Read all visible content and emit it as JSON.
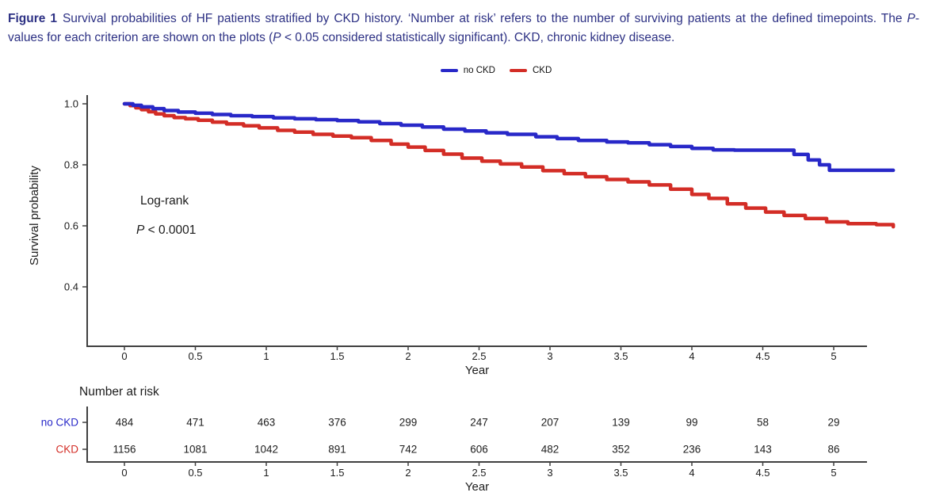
{
  "caption": {
    "color": "#2d3184",
    "segments": [
      {
        "text": "Figure 1",
        "bold": true
      },
      {
        "text": "Survival probabilities of HF patients stratified by CKD history. ‘Number at risk’ refers to the number of surviving patients at the defined timepoints. The "
      },
      {
        "text": "P",
        "italic": true
      },
      {
        "text": "-values for each criterion are shown on the plots ("
      },
      {
        "text": "P",
        "italic": true
      },
      {
        "text": " < 0.05 considered statistically significant). CKD, chronic kidney disease."
      }
    ]
  },
  "legend": {
    "items": [
      {
        "label": "no CKD",
        "color": "#2828c8"
      },
      {
        "label": "CKD",
        "color": "#d32d26"
      }
    ]
  },
  "annotation": {
    "logrank": "Log-rank",
    "p_symbol": "P",
    "p_rest": " < 0.0001"
  },
  "chart_data": {
    "type": "line",
    "subtype": "kaplan-meier-step",
    "title": "",
    "xlabel": "Year",
    "ylabel": "Survival probability",
    "xlim": [
      -0.26,
      5.45
    ],
    "ylim": [
      0.2,
      1.05
    ],
    "xticks": [
      0,
      0.5,
      1,
      1.5,
      2,
      2.5,
      3,
      3.5,
      4,
      4.5,
      5
    ],
    "yticks": [
      0.4,
      0.6,
      0.8,
      1.0
    ],
    "grid": false,
    "legend_position": "top-center",
    "axis_color": "#404040",
    "tick_text_color": "#1c1c1c",
    "series": [
      {
        "name": "CKD",
        "color": "#d32d26",
        "points": [
          [
            0,
            1.0
          ],
          [
            0.04,
            0.994
          ],
          [
            0.08,
            0.987
          ],
          [
            0.12,
            0.981
          ],
          [
            0.17,
            0.974
          ],
          [
            0.22,
            0.967
          ],
          [
            0.28,
            0.961
          ],
          [
            0.35,
            0.955
          ],
          [
            0.43,
            0.951
          ],
          [
            0.52,
            0.946
          ],
          [
            0.62,
            0.94
          ],
          [
            0.72,
            0.934
          ],
          [
            0.84,
            0.928
          ],
          [
            0.95,
            0.921
          ],
          [
            1.08,
            0.913
          ],
          [
            1.2,
            0.907
          ],
          [
            1.33,
            0.9
          ],
          [
            1.47,
            0.894
          ],
          [
            1.6,
            0.889
          ],
          [
            1.74,
            0.88
          ],
          [
            1.88,
            0.868
          ],
          [
            2.0,
            0.858
          ],
          [
            2.12,
            0.847
          ],
          [
            2.25,
            0.835
          ],
          [
            2.38,
            0.822
          ],
          [
            2.52,
            0.812
          ],
          [
            2.65,
            0.803
          ],
          [
            2.8,
            0.793
          ],
          [
            2.95,
            0.781
          ],
          [
            3.1,
            0.771
          ],
          [
            3.25,
            0.761
          ],
          [
            3.4,
            0.752
          ],
          [
            3.55,
            0.744
          ],
          [
            3.7,
            0.734
          ],
          [
            3.85,
            0.72
          ],
          [
            4.0,
            0.703
          ],
          [
            4.12,
            0.69
          ],
          [
            4.25,
            0.672
          ],
          [
            4.38,
            0.658
          ],
          [
            4.52,
            0.645
          ],
          [
            4.65,
            0.634
          ],
          [
            4.8,
            0.624
          ],
          [
            4.95,
            0.613
          ],
          [
            5.1,
            0.607
          ],
          [
            5.3,
            0.604
          ],
          [
            5.42,
            0.597
          ]
        ]
      },
      {
        "name": "no CKD",
        "color": "#2828c8",
        "points": [
          [
            0,
            1.0
          ],
          [
            0.06,
            0.995
          ],
          [
            0.12,
            0.99
          ],
          [
            0.2,
            0.984
          ],
          [
            0.28,
            0.978
          ],
          [
            0.38,
            0.973
          ],
          [
            0.5,
            0.969
          ],
          [
            0.62,
            0.965
          ],
          [
            0.75,
            0.961
          ],
          [
            0.9,
            0.958
          ],
          [
            1.05,
            0.954
          ],
          [
            1.2,
            0.951
          ],
          [
            1.35,
            0.948
          ],
          [
            1.5,
            0.945
          ],
          [
            1.65,
            0.941
          ],
          [
            1.8,
            0.935
          ],
          [
            1.95,
            0.93
          ],
          [
            2.1,
            0.924
          ],
          [
            2.25,
            0.917
          ],
          [
            2.4,
            0.911
          ],
          [
            2.55,
            0.905
          ],
          [
            2.7,
            0.9
          ],
          [
            2.9,
            0.892
          ],
          [
            3.05,
            0.886
          ],
          [
            3.2,
            0.88
          ],
          [
            3.4,
            0.875
          ],
          [
            3.55,
            0.872
          ],
          [
            3.7,
            0.866
          ],
          [
            3.85,
            0.86
          ],
          [
            4.0,
            0.854
          ],
          [
            4.15,
            0.849
          ],
          [
            4.3,
            0.848
          ],
          [
            4.72,
            0.834
          ],
          [
            4.82,
            0.816
          ],
          [
            4.9,
            0.8
          ],
          [
            4.97,
            0.782
          ],
          [
            5.42,
            0.782
          ]
        ]
      }
    ],
    "risk_table": {
      "title": "Number at risk",
      "xlabel": "Year",
      "timepoints": [
        0,
        0.5,
        1,
        1.5,
        2,
        2.5,
        3,
        3.5,
        4,
        4.5,
        5
      ],
      "rows": [
        {
          "label": "no CKD",
          "color": "#2828c8",
          "values": [
            484,
            471,
            463,
            376,
            299,
            247,
            207,
            139,
            99,
            58,
            29
          ]
        },
        {
          "label": "CKD",
          "color": "#d32d26",
          "values": [
            1156,
            1081,
            1042,
            891,
            742,
            606,
            482,
            352,
            236,
            143,
            86
          ]
        }
      ]
    }
  }
}
